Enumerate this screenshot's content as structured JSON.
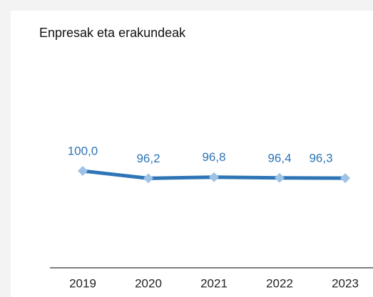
{
  "chart_data": {
    "type": "line",
    "title": "Enpresak eta erakundeak",
    "categories": [
      "2019",
      "2020",
      "2021",
      "2022",
      "2023"
    ],
    "values": [
      100.0,
      96.2,
      96.8,
      96.4,
      96.3
    ],
    "value_labels": [
      "100,0",
      "96,2",
      "96,8",
      "96,4",
      "96,3"
    ],
    "color": "#2e75b6",
    "marker_color": "#9dc3e6",
    "ylim": [
      50,
      150
    ]
  }
}
